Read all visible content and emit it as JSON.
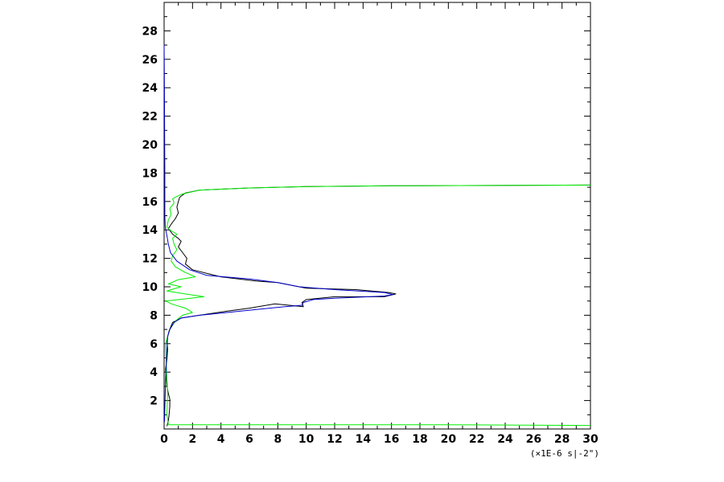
{
  "chart_data": {
    "type": "line",
    "title": "",
    "xlabel": "",
    "ylabel": "",
    "x_unit_label": "(×1E-6 s|-2\")",
    "xlim": [
      0,
      30
    ],
    "ylim": [
      0,
      30
    ],
    "x_ticks": [
      0,
      2,
      4,
      6,
      8,
      10,
      12,
      14,
      16,
      18,
      20,
      22,
      24,
      26,
      28,
      30
    ],
    "y_ticks": [
      2,
      4,
      6,
      8,
      10,
      12,
      14,
      16,
      18,
      20,
      22,
      24,
      26,
      28
    ],
    "grid": false,
    "series": [
      {
        "color": "#000000",
        "points": [
          [
            0.2,
            0.2
          ],
          [
            0.3,
            0.6
          ],
          [
            0.35,
            1.0
          ],
          [
            0.4,
            1.6
          ],
          [
            0.4,
            2.1
          ],
          [
            0.3,
            2.5
          ],
          [
            0.2,
            3.0
          ],
          [
            0.15,
            3.6
          ],
          [
            0.1,
            4.2
          ],
          [
            0.2,
            4.9
          ],
          [
            0.25,
            5.6
          ],
          [
            0.2,
            6.3
          ],
          [
            0.35,
            6.9
          ],
          [
            0.6,
            7.5
          ],
          [
            1.2,
            7.8
          ],
          [
            2.5,
            8.0
          ],
          [
            4.5,
            8.3
          ],
          [
            6.0,
            8.5
          ],
          [
            7.8,
            8.8
          ],
          [
            8.8,
            8.7
          ],
          [
            9.8,
            8.6
          ],
          [
            9.7,
            8.9
          ],
          [
            10.0,
            9.1
          ],
          [
            12.0,
            9.3
          ],
          [
            15.5,
            9.3
          ],
          [
            16.3,
            9.5
          ],
          [
            15.8,
            9.6
          ],
          [
            13.5,
            9.8
          ],
          [
            10.0,
            9.9
          ],
          [
            8.0,
            10.3
          ],
          [
            6.5,
            10.4
          ],
          [
            4.0,
            10.7
          ],
          [
            3.2,
            10.9
          ],
          [
            2.0,
            11.2
          ],
          [
            1.5,
            11.6
          ],
          [
            1.6,
            12.0
          ],
          [
            1.3,
            12.4
          ],
          [
            1.0,
            12.8
          ],
          [
            1.2,
            13.2
          ],
          [
            1.0,
            13.4
          ],
          [
            0.6,
            13.7
          ],
          [
            0.3,
            14.1
          ],
          [
            0.5,
            14.4
          ],
          [
            0.8,
            14.8
          ],
          [
            1.0,
            15.2
          ],
          [
            0.9,
            15.6
          ],
          [
            1.0,
            16.0
          ],
          [
            1.1,
            16.3
          ],
          [
            1.5,
            16.6
          ],
          [
            2.5,
            16.8
          ],
          [
            6.0,
            16.95
          ],
          [
            10.0,
            17.05
          ],
          [
            16.0,
            17.1
          ],
          [
            30.0,
            17.15
          ]
        ]
      },
      {
        "color": "#00ee00",
        "points": [
          [
            30.0,
            0.25
          ],
          [
            20.0,
            0.3
          ],
          [
            10.0,
            0.3
          ],
          [
            2.0,
            0.3
          ],
          [
            0.3,
            0.3
          ],
          [
            0.2,
            1.0
          ],
          [
            0.25,
            2.5
          ],
          [
            0.15,
            4.5
          ],
          [
            0.1,
            6.0
          ],
          [
            0.4,
            7.0
          ],
          [
            0.8,
            7.6
          ],
          [
            1.3,
            8.0
          ],
          [
            2.0,
            8.2
          ],
          [
            1.5,
            8.5
          ],
          [
            0.5,
            8.8
          ],
          [
            0.1,
            9.0
          ],
          [
            1.5,
            9.15
          ],
          [
            2.8,
            9.3
          ],
          [
            1.5,
            9.5
          ],
          [
            0.2,
            9.7
          ],
          [
            0.5,
            9.8
          ],
          [
            1.2,
            10.0
          ],
          [
            0.3,
            10.2
          ],
          [
            1.0,
            10.5
          ],
          [
            2.2,
            10.7
          ],
          [
            1.5,
            11.0
          ],
          [
            0.8,
            11.4
          ],
          [
            0.5,
            11.8
          ],
          [
            0.6,
            12.2
          ],
          [
            0.9,
            12.6
          ],
          [
            0.7,
            13.0
          ],
          [
            0.6,
            13.4
          ],
          [
            0.9,
            13.7
          ],
          [
            0.4,
            14.0
          ],
          [
            0.2,
            14.2
          ],
          [
            0.3,
            14.7
          ],
          [
            0.5,
            15.1
          ],
          [
            0.4,
            15.5
          ],
          [
            0.7,
            15.9
          ],
          [
            0.6,
            16.2
          ],
          [
            1.2,
            16.5
          ],
          [
            2.5,
            16.8
          ],
          [
            6.0,
            16.95
          ],
          [
            10.0,
            17.05
          ],
          [
            16.0,
            17.1
          ],
          [
            30.0,
            17.15
          ]
        ]
      },
      {
        "color": "#0000cc",
        "points": [
          [
            0.0,
            27.0
          ],
          [
            0.02,
            24.0
          ],
          [
            0.04,
            20.0
          ],
          [
            0.05,
            18.0
          ],
          [
            0.05,
            16.6
          ],
          [
            0.05,
            15.0
          ],
          [
            0.08,
            14.2
          ],
          [
            0.2,
            13.6
          ],
          [
            0.3,
            13.0
          ],
          [
            0.45,
            12.4
          ],
          [
            0.9,
            11.8
          ],
          [
            1.8,
            11.2
          ],
          [
            3.0,
            10.8
          ],
          [
            6.0,
            10.55
          ],
          [
            8.0,
            10.3
          ],
          [
            9.5,
            10.0
          ],
          [
            12.0,
            9.8
          ],
          [
            15.5,
            9.6
          ],
          [
            16.1,
            9.45
          ],
          [
            15.5,
            9.35
          ],
          [
            12.0,
            9.2
          ],
          [
            10.5,
            9.1
          ],
          [
            9.8,
            8.9
          ],
          [
            9.7,
            8.7
          ],
          [
            8.5,
            8.6
          ],
          [
            6.5,
            8.4
          ],
          [
            4.5,
            8.2
          ],
          [
            2.5,
            8.0
          ],
          [
            1.2,
            7.8
          ],
          [
            0.7,
            7.5
          ],
          [
            0.4,
            7.0
          ],
          [
            0.25,
            6.5
          ],
          [
            0.2,
            5.5
          ],
          [
            0.15,
            4.5
          ],
          [
            0.1,
            3.5
          ],
          [
            0.08,
            2.5
          ],
          [
            0.05,
            1.5
          ],
          [
            0.03,
            0.5
          ]
        ]
      }
    ]
  }
}
